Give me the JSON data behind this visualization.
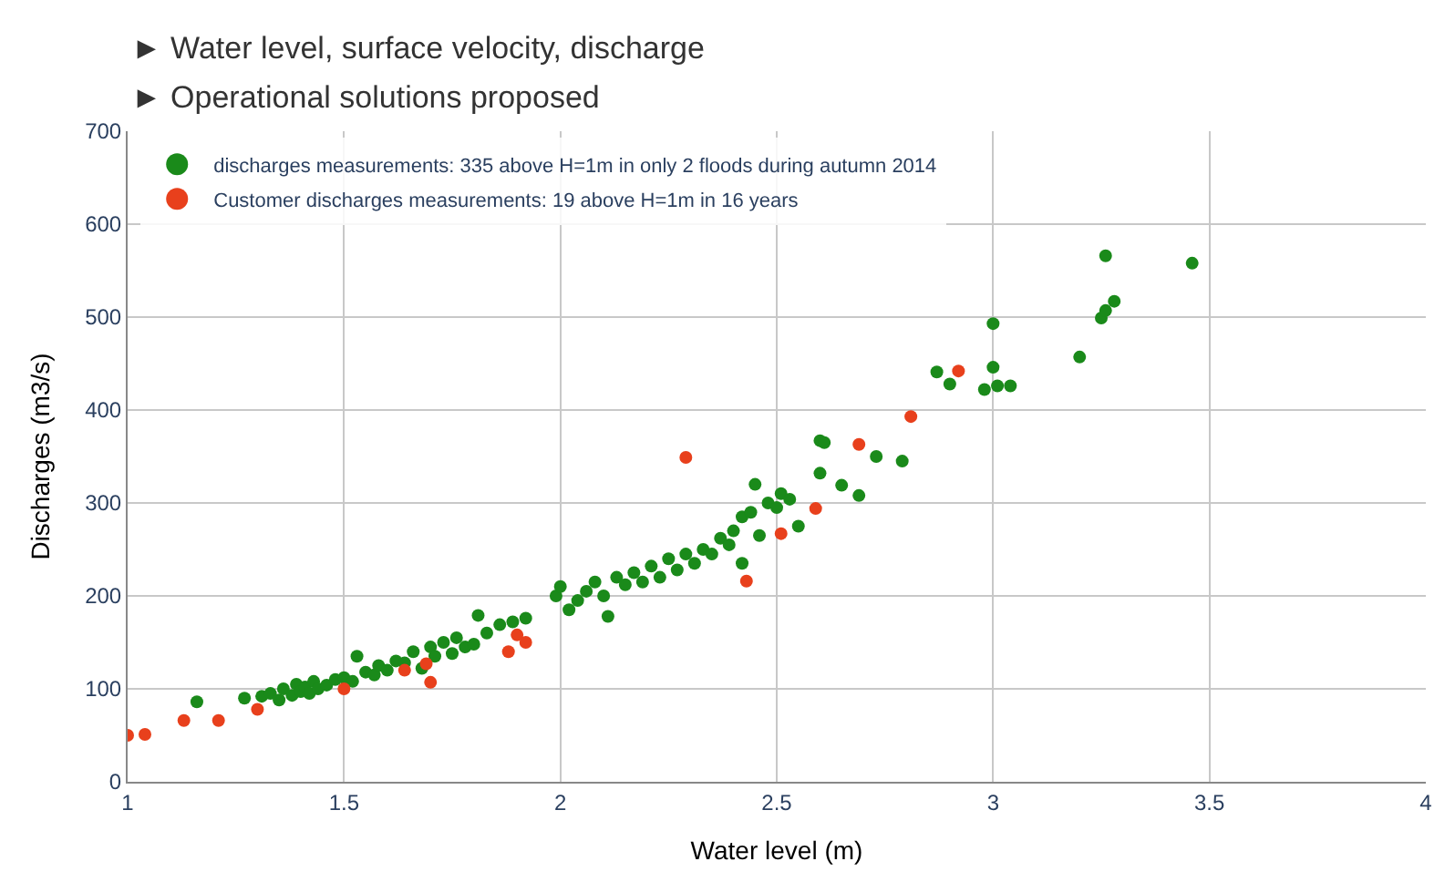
{
  "chart_data": {
    "type": "scatter",
    "xlabel": "Water level (m)",
    "ylabel": "Discharges (m3/s)",
    "annotations": [
      "► Water level, surface velocity, discharge",
      "► Operational solutions proposed"
    ],
    "xlim": [
      1,
      4
    ],
    "xticks": [
      1,
      1.5,
      2,
      2.5,
      3,
      3.5,
      4
    ],
    "ylim": [
      0,
      700
    ],
    "yticks": [
      0,
      100,
      200,
      300,
      400,
      500,
      600,
      700
    ],
    "grid": true,
    "legend": "top left",
    "marker": "circle",
    "series": [
      {
        "name": "discharges measurements: 335 above H=1m in only 2 floods during autumn 2014",
        "color": "#1a8a1a",
        "x": [
          1.16,
          1.27,
          1.31,
          1.33,
          1.35,
          1.36,
          1.38,
          1.39,
          1.4,
          1.41,
          1.42,
          1.43,
          1.44,
          1.46,
          1.48,
          1.5,
          1.52,
          1.53,
          1.55,
          1.57,
          1.58,
          1.6,
          1.62,
          1.64,
          1.66,
          1.68,
          1.7,
          1.71,
          1.73,
          1.75,
          1.76,
          1.78,
          1.8,
          1.81,
          1.83,
          1.86,
          1.89,
          1.92,
          1.99,
          2.0,
          2.02,
          2.04,
          2.06,
          2.08,
          2.1,
          2.11,
          2.13,
          2.15,
          2.17,
          2.19,
          2.21,
          2.23,
          2.25,
          2.27,
          2.29,
          2.31,
          2.33,
          2.35,
          2.37,
          2.39,
          2.4,
          2.42,
          2.42,
          2.44,
          2.45,
          2.46,
          2.48,
          2.5,
          2.51,
          2.53,
          2.55,
          2.6,
          2.6,
          2.61,
          2.65,
          2.69,
          2.73,
          2.79,
          2.87,
          2.9,
          2.98,
          3.0,
          3.0,
          3.01,
          3.04,
          3.2,
          3.25,
          3.26,
          3.26,
          3.28,
          3.46
        ],
        "values": [
          86,
          90,
          92,
          95,
          88,
          100,
          93,
          105,
          97,
          102,
          95,
          108,
          100,
          104,
          110,
          112,
          108,
          135,
          118,
          115,
          125,
          120,
          130,
          128,
          140,
          122,
          145,
          135,
          150,
          138,
          155,
          145,
          148,
          179,
          160,
          169,
          172,
          176,
          200,
          210,
          185,
          195,
          205,
          215,
          200,
          178,
          220,
          212,
          225,
          215,
          232,
          220,
          240,
          228,
          245,
          235,
          250,
          245,
          262,
          255,
          270,
          235,
          285,
          290,
          320,
          265,
          300,
          295,
          310,
          304,
          275,
          332,
          367,
          365,
          319,
          308,
          350,
          345,
          441,
          428,
          422,
          446,
          493,
          426,
          426,
          457,
          499,
          507,
          566,
          517,
          558
        ]
      },
      {
        "name": "Customer discharges measurements: 19 above H=1m in 16 years",
        "color": "#e8401c",
        "x": [
          1.0,
          1.04,
          1.13,
          1.21,
          1.3,
          1.5,
          1.64,
          1.69,
          1.7,
          1.88,
          1.9,
          1.92,
          2.29,
          2.43,
          2.51,
          2.59,
          2.69,
          2.81,
          2.92
        ],
        "values": [
          50,
          51,
          66,
          66,
          78,
          100,
          120,
          127,
          107,
          140,
          158,
          150,
          349,
          216,
          267,
          294,
          363,
          393,
          442
        ]
      }
    ]
  }
}
